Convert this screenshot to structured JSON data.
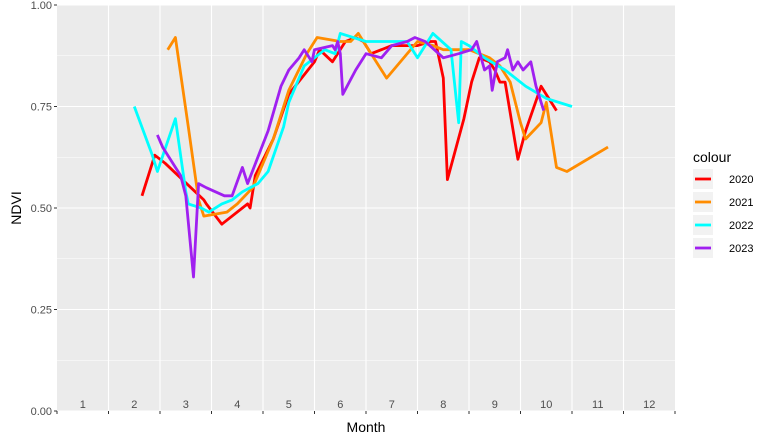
{
  "chart_data": {
    "type": "line",
    "title": "",
    "xlabel": "Month",
    "ylabel": "NDVI",
    "xlim": [
      0.5,
      12.5
    ],
    "ylim": [
      0,
      1
    ],
    "x_tick_labels": [
      "1",
      "2",
      "3",
      "4",
      "5",
      "6",
      "7",
      "8",
      "9",
      "10",
      "11",
      "12"
    ],
    "y_ticks": [
      0,
      0.25,
      0.5,
      0.75,
      1
    ],
    "y_tick_labels": [
      "0.00",
      "0.25",
      "0.50",
      "0.75",
      "1.00"
    ],
    "grid": true,
    "legend": {
      "title": "colour",
      "placement": "right"
    },
    "series": [
      {
        "name": "2020",
        "color": "#ff0000",
        "points": [
          [
            2.15,
            0.53
          ],
          [
            2.4,
            0.63
          ],
          [
            2.6,
            0.61
          ],
          [
            3.35,
            0.52
          ],
          [
            3.4,
            0.51
          ],
          [
            3.7,
            0.46
          ],
          [
            4.2,
            0.51
          ],
          [
            4.25,
            0.5
          ],
          [
            4.35,
            0.58
          ],
          [
            4.7,
            0.67
          ],
          [
            5.0,
            0.78
          ],
          [
            5.5,
            0.86
          ],
          [
            5.6,
            0.89
          ],
          [
            5.85,
            0.86
          ],
          [
            6.1,
            0.91
          ],
          [
            6.3,
            0.92
          ],
          [
            6.45,
            0.91
          ],
          [
            6.6,
            0.88
          ],
          [
            7.0,
            0.9
          ],
          [
            7.3,
            0.9
          ],
          [
            7.5,
            0.9
          ],
          [
            7.75,
            0.91
          ],
          [
            7.85,
            0.91
          ],
          [
            8.0,
            0.82
          ],
          [
            8.08,
            0.57
          ],
          [
            8.4,
            0.72
          ],
          [
            8.55,
            0.81
          ],
          [
            8.7,
            0.87
          ],
          [
            8.9,
            0.86
          ],
          [
            9.0,
            0.84
          ],
          [
            9.1,
            0.81
          ],
          [
            9.2,
            0.81
          ],
          [
            9.45,
            0.62
          ],
          [
            9.6,
            0.69
          ],
          [
            9.9,
            0.8
          ],
          [
            10.2,
            0.74
          ]
        ]
      },
      {
        "name": "2021",
        "color": "#ff8c00",
        "points": [
          [
            2.65,
            0.89
          ],
          [
            2.8,
            0.92
          ],
          [
            3.05,
            0.7
          ],
          [
            3.25,
            0.52
          ],
          [
            3.35,
            0.48
          ],
          [
            3.8,
            0.49
          ],
          [
            4.0,
            0.51
          ],
          [
            4.3,
            0.55
          ],
          [
            4.7,
            0.67
          ],
          [
            5.0,
            0.79
          ],
          [
            5.35,
            0.88
          ],
          [
            5.55,
            0.92
          ],
          [
            6.0,
            0.91
          ],
          [
            6.2,
            0.91
          ],
          [
            6.35,
            0.93
          ],
          [
            6.5,
            0.9
          ],
          [
            6.9,
            0.82
          ],
          [
            7.5,
            0.91
          ],
          [
            7.8,
            0.9
          ],
          [
            8.0,
            0.89
          ],
          [
            8.5,
            0.89
          ],
          [
            8.9,
            0.87
          ],
          [
            9.1,
            0.85
          ],
          [
            9.3,
            0.81
          ],
          [
            9.5,
            0.71
          ],
          [
            9.6,
            0.67
          ],
          [
            9.9,
            0.71
          ],
          [
            10.0,
            0.76
          ],
          [
            10.2,
            0.6
          ],
          [
            10.4,
            0.59
          ],
          [
            11.2,
            0.65
          ]
        ]
      },
      {
        "name": "2022",
        "color": "#00ffff",
        "points": [
          [
            2.0,
            0.75
          ],
          [
            2.35,
            0.63
          ],
          [
            2.45,
            0.59
          ],
          [
            2.8,
            0.72
          ],
          [
            3.0,
            0.54
          ],
          [
            3.05,
            0.51
          ],
          [
            3.3,
            0.5
          ],
          [
            3.45,
            0.49
          ],
          [
            3.7,
            0.51
          ],
          [
            3.9,
            0.52
          ],
          [
            4.1,
            0.54
          ],
          [
            4.4,
            0.56
          ],
          [
            4.6,
            0.59
          ],
          [
            4.9,
            0.7
          ],
          [
            5.0,
            0.76
          ],
          [
            5.3,
            0.85
          ],
          [
            5.7,
            0.89
          ],
          [
            5.9,
            0.88
          ],
          [
            6.0,
            0.93
          ],
          [
            6.5,
            0.91
          ],
          [
            6.8,
            0.91
          ],
          [
            7.3,
            0.91
          ],
          [
            7.5,
            0.87
          ],
          [
            7.8,
            0.93
          ],
          [
            8.15,
            0.89
          ],
          [
            8.3,
            0.71
          ],
          [
            8.35,
            0.91
          ],
          [
            8.5,
            0.9
          ],
          [
            8.8,
            0.87
          ],
          [
            9.2,
            0.84
          ],
          [
            9.6,
            0.8
          ],
          [
            10.0,
            0.77
          ],
          [
            10.5,
            0.75
          ]
        ]
      },
      {
        "name": "2023",
        "color": "#a020f0",
        "points": [
          [
            2.45,
            0.68
          ],
          [
            2.55,
            0.65
          ],
          [
            2.9,
            0.58
          ],
          [
            3.0,
            0.53
          ],
          [
            3.15,
            0.33
          ],
          [
            3.25,
            0.56
          ],
          [
            3.4,
            0.55
          ],
          [
            3.75,
            0.53
          ],
          [
            3.9,
            0.53
          ],
          [
            4.1,
            0.6
          ],
          [
            4.2,
            0.56
          ],
          [
            4.6,
            0.69
          ],
          [
            4.85,
            0.8
          ],
          [
            5.0,
            0.84
          ],
          [
            5.2,
            0.87
          ],
          [
            5.3,
            0.89
          ],
          [
            5.45,
            0.86
          ],
          [
            5.5,
            0.89
          ],
          [
            5.85,
            0.9
          ],
          [
            5.9,
            0.89
          ],
          [
            5.95,
            0.91
          ],
          [
            6.0,
            0.88
          ],
          [
            6.05,
            0.78
          ],
          [
            6.3,
            0.84
          ],
          [
            6.5,
            0.88
          ],
          [
            6.8,
            0.87
          ],
          [
            7.0,
            0.9
          ],
          [
            7.3,
            0.91
          ],
          [
            7.45,
            0.92
          ],
          [
            7.65,
            0.91
          ],
          [
            8.0,
            0.87
          ],
          [
            8.3,
            0.88
          ],
          [
            8.55,
            0.89
          ],
          [
            8.65,
            0.91
          ],
          [
            8.8,
            0.84
          ],
          [
            8.9,
            0.85
          ],
          [
            8.95,
            0.79
          ],
          [
            9.05,
            0.86
          ],
          [
            9.2,
            0.87
          ],
          [
            9.25,
            0.89
          ],
          [
            9.35,
            0.84
          ],
          [
            9.45,
            0.86
          ],
          [
            9.55,
            0.84
          ],
          [
            9.7,
            0.86
          ],
          [
            9.8,
            0.8
          ],
          [
            9.95,
            0.74
          ]
        ]
      }
    ]
  }
}
